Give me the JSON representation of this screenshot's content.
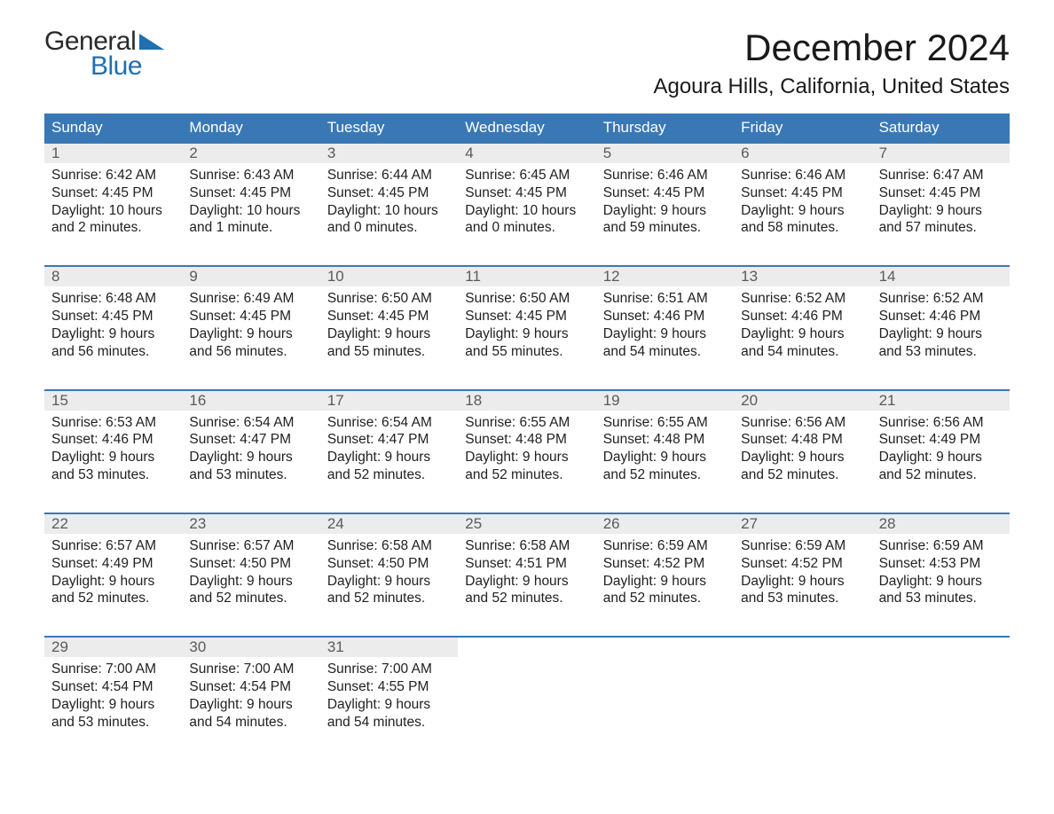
{
  "brand": {
    "word1": "General",
    "word2": "Blue",
    "word1_color": "#2a2a2a",
    "word2_color": "#1f6fb2",
    "wedge_color": "#1f6fb2"
  },
  "title": "December 2024",
  "location": "Agoura Hills, California, United States",
  "colors": {
    "header_bg": "#3a78b5",
    "header_text": "#ffffff",
    "daynum_bg": "#ececec",
    "daynum_text": "#5a5a5a",
    "body_text": "#212121",
    "week_border": "#3a78b5",
    "page_bg": "#ffffff"
  },
  "typography": {
    "title_fontsize": 42,
    "location_fontsize": 24,
    "header_fontsize": 17,
    "daynum_fontsize": 17,
    "cell_fontsize": 15.5
  },
  "day_names": [
    "Sunday",
    "Monday",
    "Tuesday",
    "Wednesday",
    "Thursday",
    "Friday",
    "Saturday"
  ],
  "weeks": [
    [
      {
        "n": "1",
        "sunrise": "Sunrise: 6:42 AM",
        "sunset": "Sunset: 4:45 PM",
        "d1": "Daylight: 10 hours",
        "d2": "and 2 minutes."
      },
      {
        "n": "2",
        "sunrise": "Sunrise: 6:43 AM",
        "sunset": "Sunset: 4:45 PM",
        "d1": "Daylight: 10 hours",
        "d2": "and 1 minute."
      },
      {
        "n": "3",
        "sunrise": "Sunrise: 6:44 AM",
        "sunset": "Sunset: 4:45 PM",
        "d1": "Daylight: 10 hours",
        "d2": "and 0 minutes."
      },
      {
        "n": "4",
        "sunrise": "Sunrise: 6:45 AM",
        "sunset": "Sunset: 4:45 PM",
        "d1": "Daylight: 10 hours",
        "d2": "and 0 minutes."
      },
      {
        "n": "5",
        "sunrise": "Sunrise: 6:46 AM",
        "sunset": "Sunset: 4:45 PM",
        "d1": "Daylight: 9 hours",
        "d2": "and 59 minutes."
      },
      {
        "n": "6",
        "sunrise": "Sunrise: 6:46 AM",
        "sunset": "Sunset: 4:45 PM",
        "d1": "Daylight: 9 hours",
        "d2": "and 58 minutes."
      },
      {
        "n": "7",
        "sunrise": "Sunrise: 6:47 AM",
        "sunset": "Sunset: 4:45 PM",
        "d1": "Daylight: 9 hours",
        "d2": "and 57 minutes."
      }
    ],
    [
      {
        "n": "8",
        "sunrise": "Sunrise: 6:48 AM",
        "sunset": "Sunset: 4:45 PM",
        "d1": "Daylight: 9 hours",
        "d2": "and 56 minutes."
      },
      {
        "n": "9",
        "sunrise": "Sunrise: 6:49 AM",
        "sunset": "Sunset: 4:45 PM",
        "d1": "Daylight: 9 hours",
        "d2": "and 56 minutes."
      },
      {
        "n": "10",
        "sunrise": "Sunrise: 6:50 AM",
        "sunset": "Sunset: 4:45 PM",
        "d1": "Daylight: 9 hours",
        "d2": "and 55 minutes."
      },
      {
        "n": "11",
        "sunrise": "Sunrise: 6:50 AM",
        "sunset": "Sunset: 4:45 PM",
        "d1": "Daylight: 9 hours",
        "d2": "and 55 minutes."
      },
      {
        "n": "12",
        "sunrise": "Sunrise: 6:51 AM",
        "sunset": "Sunset: 4:46 PM",
        "d1": "Daylight: 9 hours",
        "d2": "and 54 minutes."
      },
      {
        "n": "13",
        "sunrise": "Sunrise: 6:52 AM",
        "sunset": "Sunset: 4:46 PM",
        "d1": "Daylight: 9 hours",
        "d2": "and 54 minutes."
      },
      {
        "n": "14",
        "sunrise": "Sunrise: 6:52 AM",
        "sunset": "Sunset: 4:46 PM",
        "d1": "Daylight: 9 hours",
        "d2": "and 53 minutes."
      }
    ],
    [
      {
        "n": "15",
        "sunrise": "Sunrise: 6:53 AM",
        "sunset": "Sunset: 4:46 PM",
        "d1": "Daylight: 9 hours",
        "d2": "and 53 minutes."
      },
      {
        "n": "16",
        "sunrise": "Sunrise: 6:54 AM",
        "sunset": "Sunset: 4:47 PM",
        "d1": "Daylight: 9 hours",
        "d2": "and 53 minutes."
      },
      {
        "n": "17",
        "sunrise": "Sunrise: 6:54 AM",
        "sunset": "Sunset: 4:47 PM",
        "d1": "Daylight: 9 hours",
        "d2": "and 52 minutes."
      },
      {
        "n": "18",
        "sunrise": "Sunrise: 6:55 AM",
        "sunset": "Sunset: 4:48 PM",
        "d1": "Daylight: 9 hours",
        "d2": "and 52 minutes."
      },
      {
        "n": "19",
        "sunrise": "Sunrise: 6:55 AM",
        "sunset": "Sunset: 4:48 PM",
        "d1": "Daylight: 9 hours",
        "d2": "and 52 minutes."
      },
      {
        "n": "20",
        "sunrise": "Sunrise: 6:56 AM",
        "sunset": "Sunset: 4:48 PM",
        "d1": "Daylight: 9 hours",
        "d2": "and 52 minutes."
      },
      {
        "n": "21",
        "sunrise": "Sunrise: 6:56 AM",
        "sunset": "Sunset: 4:49 PM",
        "d1": "Daylight: 9 hours",
        "d2": "and 52 minutes."
      }
    ],
    [
      {
        "n": "22",
        "sunrise": "Sunrise: 6:57 AM",
        "sunset": "Sunset: 4:49 PM",
        "d1": "Daylight: 9 hours",
        "d2": "and 52 minutes."
      },
      {
        "n": "23",
        "sunrise": "Sunrise: 6:57 AM",
        "sunset": "Sunset: 4:50 PM",
        "d1": "Daylight: 9 hours",
        "d2": "and 52 minutes."
      },
      {
        "n": "24",
        "sunrise": "Sunrise: 6:58 AM",
        "sunset": "Sunset: 4:50 PM",
        "d1": "Daylight: 9 hours",
        "d2": "and 52 minutes."
      },
      {
        "n": "25",
        "sunrise": "Sunrise: 6:58 AM",
        "sunset": "Sunset: 4:51 PM",
        "d1": "Daylight: 9 hours",
        "d2": "and 52 minutes."
      },
      {
        "n": "26",
        "sunrise": "Sunrise: 6:59 AM",
        "sunset": "Sunset: 4:52 PM",
        "d1": "Daylight: 9 hours",
        "d2": "and 52 minutes."
      },
      {
        "n": "27",
        "sunrise": "Sunrise: 6:59 AM",
        "sunset": "Sunset: 4:52 PM",
        "d1": "Daylight: 9 hours",
        "d2": "and 53 minutes."
      },
      {
        "n": "28",
        "sunrise": "Sunrise: 6:59 AM",
        "sunset": "Sunset: 4:53 PM",
        "d1": "Daylight: 9 hours",
        "d2": "and 53 minutes."
      }
    ],
    [
      {
        "n": "29",
        "sunrise": "Sunrise: 7:00 AM",
        "sunset": "Sunset: 4:54 PM",
        "d1": "Daylight: 9 hours",
        "d2": "and 53 minutes."
      },
      {
        "n": "30",
        "sunrise": "Sunrise: 7:00 AM",
        "sunset": "Sunset: 4:54 PM",
        "d1": "Daylight: 9 hours",
        "d2": "and 54 minutes."
      },
      {
        "n": "31",
        "sunrise": "Sunrise: 7:00 AM",
        "sunset": "Sunset: 4:55 PM",
        "d1": "Daylight: 9 hours",
        "d2": "and 54 minutes."
      },
      null,
      null,
      null,
      null
    ]
  ]
}
